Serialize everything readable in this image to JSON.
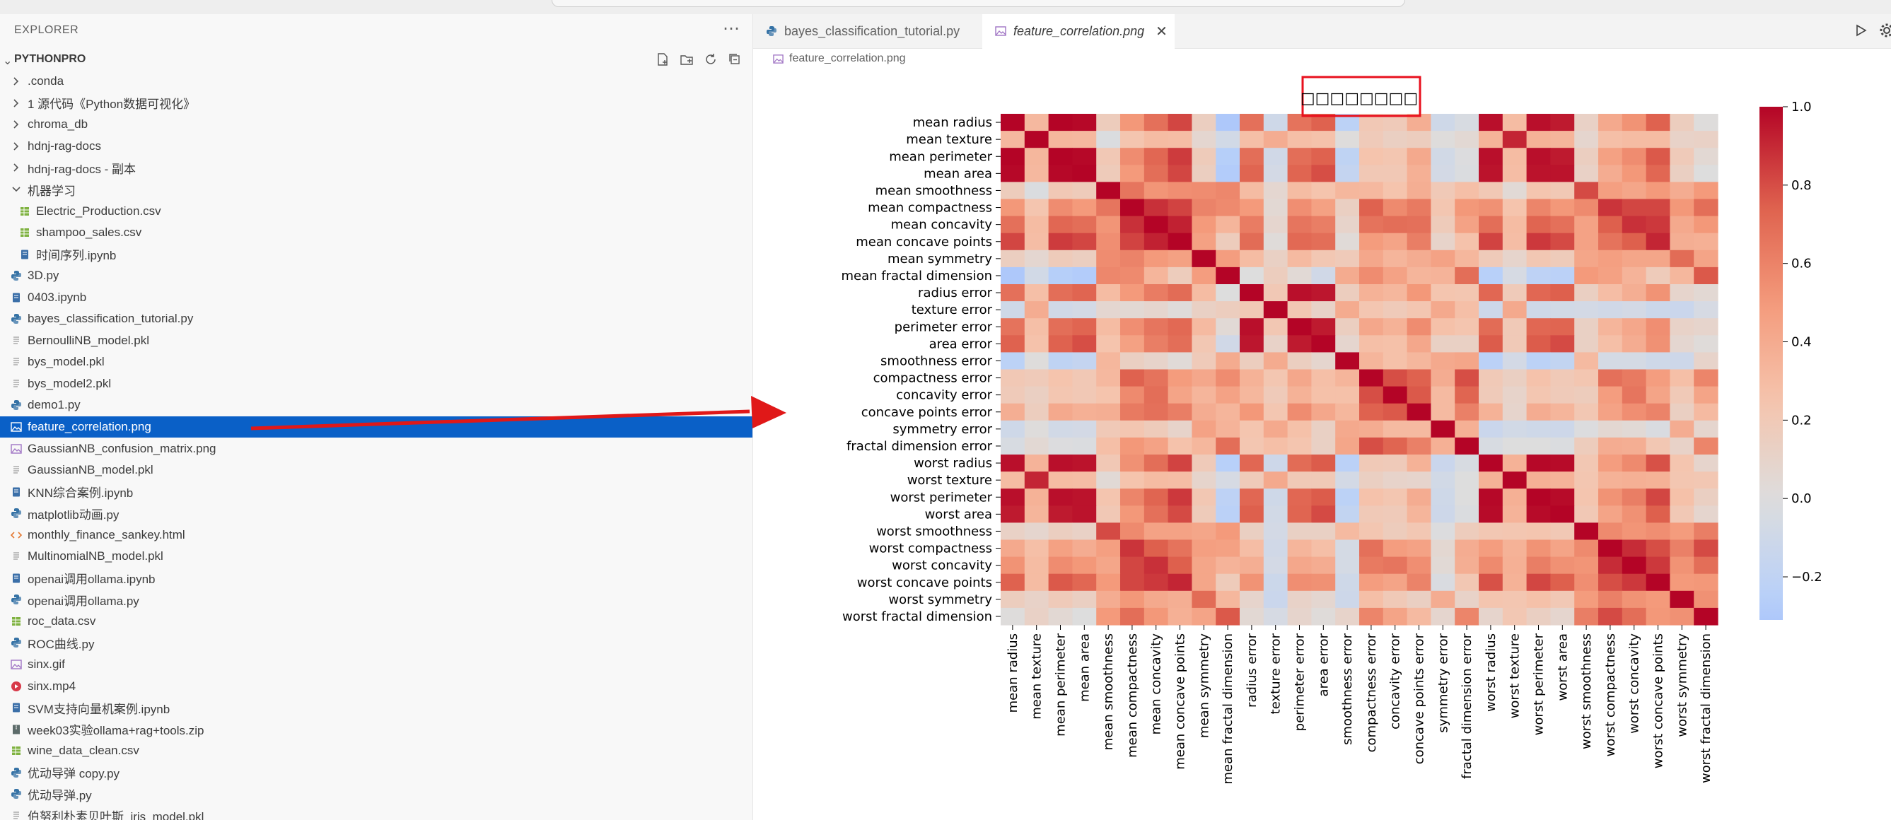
{
  "colors": {
    "accent": "#0a60c7",
    "highlight_box": "#e8101e",
    "arrow": "#e01818",
    "cmap_low": "#b3cdf5",
    "cmap_mid": "#dddddd",
    "cmap_high": "#b40426"
  },
  "explorer": {
    "header": "EXPLORER",
    "more_icon": "ellipsis-icon",
    "project": "PYTHONPRO",
    "actions": [
      "new-file-icon",
      "new-folder-icon",
      "refresh-icon",
      "collapse-all-icon"
    ],
    "items": [
      {
        "label": ".conda",
        "icon": "chevron-right-icon",
        "indent": 0,
        "type": "folder"
      },
      {
        "label": "1 源代码《Python数据可视化》",
        "icon": "chevron-right-icon",
        "indent": 0,
        "type": "folder"
      },
      {
        "label": "chroma_db",
        "icon": "chevron-right-icon",
        "indent": 0,
        "type": "folder"
      },
      {
        "label": "hdnj-rag-docs",
        "icon": "chevron-right-icon",
        "indent": 0,
        "type": "folder"
      },
      {
        "label": "hdnj-rag-docs - 副本",
        "icon": "chevron-right-icon",
        "indent": 0,
        "type": "folder"
      },
      {
        "label": "机器学习",
        "icon": "chevron-down-icon",
        "indent": 0,
        "type": "folder"
      },
      {
        "label": "Electric_Production.csv",
        "icon": "csv-icon",
        "indent": 1,
        "type": "csv"
      },
      {
        "label": "shampoo_sales.csv",
        "icon": "csv-icon",
        "indent": 1,
        "type": "csv"
      },
      {
        "label": "时间序列.ipynb",
        "icon": "notebook-icon",
        "indent": 1,
        "type": "nb"
      },
      {
        "label": "3D.py",
        "icon": "python-icon",
        "indent": 0,
        "type": "py"
      },
      {
        "label": "0403.ipynb",
        "icon": "notebook-icon",
        "indent": 0,
        "type": "nb"
      },
      {
        "label": "bayes_classification_tutorial.py",
        "icon": "python-icon",
        "indent": 0,
        "type": "py"
      },
      {
        "label": "BernoulliNB_model.pkl",
        "icon": "file-lines-icon",
        "indent": 0,
        "type": "pkl"
      },
      {
        "label": "bys_model.pkl",
        "icon": "file-lines-icon",
        "indent": 0,
        "type": "pkl"
      },
      {
        "label": "bys_model2.pkl",
        "icon": "file-lines-icon",
        "indent": 0,
        "type": "pkl"
      },
      {
        "label": "demo1.py",
        "icon": "python-icon",
        "indent": 0,
        "type": "py"
      },
      {
        "label": "feature_correlation.png",
        "icon": "image-icon",
        "indent": 0,
        "type": "img",
        "selected": true
      },
      {
        "label": "GaussianNB_confusion_matrix.png",
        "icon": "image-icon",
        "indent": 0,
        "type": "img"
      },
      {
        "label": "GaussianNB_model.pkl",
        "icon": "file-lines-icon",
        "indent": 0,
        "type": "pkl"
      },
      {
        "label": "KNN综合案例.ipynb",
        "icon": "notebook-icon",
        "indent": 0,
        "type": "nb"
      },
      {
        "label": "matplotlib动画.py",
        "icon": "python-icon",
        "indent": 0,
        "type": "py"
      },
      {
        "label": "monthly_finance_sankey.html",
        "icon": "html-icon",
        "indent": 0,
        "type": "html"
      },
      {
        "label": "MultinomialNB_model.pkl",
        "icon": "file-lines-icon",
        "indent": 0,
        "type": "pkl"
      },
      {
        "label": "openai调用ollama.ipynb",
        "icon": "notebook-icon",
        "indent": 0,
        "type": "nb"
      },
      {
        "label": "openai调用ollama.py",
        "icon": "python-icon",
        "indent": 0,
        "type": "py"
      },
      {
        "label": "roc_data.csv",
        "icon": "csv-icon",
        "indent": 0,
        "type": "csv"
      },
      {
        "label": "ROC曲线.py",
        "icon": "python-icon",
        "indent": 0,
        "type": "py"
      },
      {
        "label": "sinx.gif",
        "icon": "image-icon",
        "indent": 0,
        "type": "img"
      },
      {
        "label": "sinx.mp4",
        "icon": "video-icon",
        "indent": 0,
        "type": "mp4"
      },
      {
        "label": "SVM支持向量机案例.ipynb",
        "icon": "notebook-icon",
        "indent": 0,
        "type": "nb"
      },
      {
        "label": "week03实验ollama+rag+tools.zip",
        "icon": "zip-icon",
        "indent": 0,
        "type": "zip"
      },
      {
        "label": "wine_data_clean.csv",
        "icon": "csv-icon",
        "indent": 0,
        "type": "csv"
      },
      {
        "label": "优动导弹 copy.py",
        "icon": "python-icon",
        "indent": 0,
        "type": "py"
      },
      {
        "label": "优动导弹.py",
        "icon": "python-icon",
        "indent": 0,
        "type": "py"
      },
      {
        "label": "伯努利朴素贝叶斯_iris_model.pkl",
        "icon": "file-lines-icon",
        "indent": 0,
        "type": "pkl"
      }
    ]
  },
  "editor": {
    "tabs": [
      {
        "label": "bayes_classification_tutorial.py",
        "icon": "python-icon",
        "active": false
      },
      {
        "label": "feature_correlation.png",
        "icon": "image-icon",
        "active": true,
        "close_icon": "close-icon"
      }
    ],
    "run_icon": "play-icon",
    "settings_icon": "settings-icon",
    "breadcrumb": "feature_correlation.png"
  },
  "chart_data": {
    "type": "heatmap",
    "title": "□□□□□□□□",
    "features": [
      "mean radius",
      "mean texture",
      "mean perimeter",
      "mean area",
      "mean smoothness",
      "mean compactness",
      "mean concavity",
      "mean concave points",
      "mean symmetry",
      "mean fractal dimension",
      "radius error",
      "texture error",
      "perimeter error",
      "area error",
      "smoothness error",
      "compactness error",
      "concavity error",
      "concave points error",
      "symmetry error",
      "fractal dimension error",
      "worst radius",
      "worst texture",
      "worst perimeter",
      "worst area",
      "worst smoothness",
      "worst compactness",
      "worst concavity",
      "worst concave points",
      "worst symmetry",
      "worst fractal dimension"
    ],
    "matrix": [
      [
        1.0,
        0.32,
        1.0,
        0.99,
        0.17,
        0.51,
        0.68,
        0.82,
        0.15,
        -0.31,
        0.68,
        -0.1,
        0.67,
        0.74,
        -0.22,
        0.21,
        0.19,
        0.38,
        -0.1,
        -0.04,
        0.97,
        0.3,
        0.97,
        0.94,
        0.12,
        0.41,
        0.53,
        0.74,
        0.16,
        0.01
      ],
      [
        0.32,
        1.0,
        0.33,
        0.32,
        -0.02,
        0.24,
        0.3,
        0.29,
        0.07,
        -0.08,
        0.28,
        0.39,
        0.28,
        0.26,
        0.01,
        0.19,
        0.14,
        0.16,
        0.01,
        0.05,
        0.35,
        0.91,
        0.36,
        0.34,
        0.08,
        0.28,
        0.3,
        0.3,
        0.11,
        0.12
      ],
      [
        1.0,
        0.33,
        1.0,
        0.99,
        0.21,
        0.56,
        0.72,
        0.85,
        0.18,
        -0.26,
        0.69,
        -0.09,
        0.69,
        0.74,
        -0.2,
        0.25,
        0.23,
        0.41,
        -0.08,
        -0.01,
        0.97,
        0.3,
        0.97,
        0.94,
        0.15,
        0.46,
        0.56,
        0.77,
        0.19,
        0.05
      ],
      [
        0.99,
        0.32,
        0.99,
        1.0,
        0.18,
        0.5,
        0.69,
        0.82,
        0.15,
        -0.28,
        0.73,
        -0.07,
        0.73,
        0.8,
        -0.17,
        0.21,
        0.21,
        0.37,
        -0.07,
        -0.02,
        0.96,
        0.29,
        0.96,
        0.96,
        0.12,
        0.39,
        0.51,
        0.72,
        0.14,
        0.0
      ],
      [
        0.17,
        -0.02,
        0.21,
        0.18,
        1.0,
        0.66,
        0.52,
        0.55,
        0.56,
        0.58,
        0.3,
        0.07,
        0.3,
        0.25,
        0.33,
        0.32,
        0.25,
        0.38,
        0.2,
        0.28,
        0.21,
        0.04,
        0.24,
        0.21,
        0.81,
        0.47,
        0.43,
        0.5,
        0.39,
        0.5
      ],
      [
        0.51,
        0.24,
        0.56,
        0.5,
        0.66,
        1.0,
        0.88,
        0.83,
        0.6,
        0.57,
        0.5,
        0.05,
        0.55,
        0.46,
        0.14,
        0.74,
        0.57,
        0.64,
        0.23,
        0.51,
        0.54,
        0.25,
        0.59,
        0.51,
        0.57,
        0.87,
        0.82,
        0.82,
        0.51,
        0.69
      ],
      [
        0.68,
        0.3,
        0.72,
        0.69,
        0.52,
        0.88,
        1.0,
        0.92,
        0.5,
        0.34,
        0.63,
        0.08,
        0.66,
        0.62,
        0.1,
        0.67,
        0.69,
        0.68,
        0.18,
        0.45,
        0.69,
        0.3,
        0.73,
        0.68,
        0.45,
        0.75,
        0.88,
        0.86,
        0.41,
        0.51
      ],
      [
        0.82,
        0.29,
        0.85,
        0.82,
        0.55,
        0.83,
        0.92,
        1.0,
        0.46,
        0.17,
        0.7,
        0.02,
        0.71,
        0.69,
        0.03,
        0.49,
        0.44,
        0.62,
        0.1,
        0.26,
        0.83,
        0.29,
        0.86,
        0.81,
        0.45,
        0.67,
        0.75,
        0.91,
        0.38,
        0.37
      ],
      [
        0.15,
        0.07,
        0.18,
        0.15,
        0.56,
        0.6,
        0.5,
        0.46,
        1.0,
        0.48,
        0.3,
        0.13,
        0.31,
        0.22,
        0.19,
        0.42,
        0.34,
        0.39,
        0.45,
        0.33,
        0.19,
        0.09,
        0.22,
        0.18,
        0.43,
        0.47,
        0.43,
        0.43,
        0.7,
        0.44
      ],
      [
        -0.31,
        -0.08,
        -0.26,
        -0.28,
        0.58,
        0.57,
        0.34,
        0.17,
        0.48,
        1.0,
        0.0,
        0.16,
        0.04,
        -0.09,
        0.4,
        0.56,
        0.45,
        0.34,
        0.35,
        0.69,
        -0.25,
        -0.05,
        -0.21,
        -0.23,
        0.5,
        0.46,
        0.35,
        0.18,
        0.33,
        0.77
      ],
      [
        0.68,
        0.28,
        0.69,
        0.73,
        0.3,
        0.5,
        0.63,
        0.7,
        0.3,
        0.0,
        1.0,
        0.21,
        0.97,
        0.95,
        0.16,
        0.36,
        0.33,
        0.51,
        0.24,
        0.23,
        0.72,
        0.19,
        0.72,
        0.75,
        0.14,
        0.29,
        0.38,
        0.53,
        0.09,
        0.05
      ],
      [
        -0.1,
        0.39,
        -0.09,
        -0.07,
        0.07,
        0.05,
        0.08,
        0.02,
        0.13,
        0.16,
        0.21,
        1.0,
        0.22,
        0.11,
        0.4,
        0.23,
        0.19,
        0.23,
        0.41,
        0.28,
        -0.11,
        0.41,
        -0.1,
        -0.08,
        -0.07,
        -0.09,
        -0.07,
        -0.12,
        -0.13,
        -0.05
      ],
      [
        0.67,
        0.28,
        0.69,
        0.73,
        0.3,
        0.55,
        0.66,
        0.71,
        0.31,
        0.04,
        0.97,
        0.22,
        1.0,
        0.94,
        0.15,
        0.42,
        0.36,
        0.56,
        0.27,
        0.24,
        0.7,
        0.2,
        0.72,
        0.73,
        0.13,
        0.34,
        0.42,
        0.55,
        0.11,
        0.09
      ],
      [
        0.74,
        0.26,
        0.74,
        0.8,
        0.25,
        0.46,
        0.62,
        0.69,
        0.22,
        -0.09,
        0.95,
        0.11,
        0.94,
        1.0,
        0.08,
        0.28,
        0.27,
        0.42,
        0.13,
        0.13,
        0.76,
        0.2,
        0.76,
        0.81,
        0.13,
        0.28,
        0.39,
        0.54,
        0.07,
        0.02
      ],
      [
        -0.22,
        0.01,
        -0.2,
        -0.17,
        0.33,
        0.14,
        0.1,
        0.03,
        0.19,
        0.4,
        0.16,
        0.4,
        0.15,
        0.08,
        1.0,
        0.34,
        0.27,
        0.33,
        0.41,
        0.43,
        -0.23,
        -0.07,
        -0.22,
        -0.18,
        0.31,
        -0.06,
        -0.06,
        -0.1,
        -0.11,
        0.1
      ],
      [
        0.21,
        0.19,
        0.25,
        0.21,
        0.32,
        0.74,
        0.67,
        0.49,
        0.42,
        0.56,
        0.36,
        0.23,
        0.42,
        0.28,
        0.34,
        1.0,
        0.8,
        0.74,
        0.39,
        0.8,
        0.2,
        0.14,
        0.26,
        0.2,
        0.23,
        0.68,
        0.64,
        0.48,
        0.28,
        0.59
      ],
      [
        0.19,
        0.14,
        0.23,
        0.21,
        0.25,
        0.57,
        0.69,
        0.44,
        0.34,
        0.45,
        0.33,
        0.19,
        0.36,
        0.27,
        0.27,
        0.8,
        1.0,
        0.77,
        0.31,
        0.73,
        0.19,
        0.1,
        0.23,
        0.19,
        0.17,
        0.48,
        0.66,
        0.44,
        0.2,
        0.44
      ],
      [
        0.38,
        0.16,
        0.41,
        0.37,
        0.38,
        0.64,
        0.68,
        0.62,
        0.39,
        0.34,
        0.51,
        0.23,
        0.56,
        0.42,
        0.33,
        0.74,
        0.77,
        1.0,
        0.31,
        0.61,
        0.36,
        0.09,
        0.39,
        0.34,
        0.22,
        0.45,
        0.55,
        0.6,
        0.14,
        0.31
      ],
      [
        -0.1,
        0.01,
        -0.08,
        -0.07,
        0.2,
        0.23,
        0.18,
        0.1,
        0.45,
        0.35,
        0.24,
        0.41,
        0.27,
        0.13,
        0.41,
        0.39,
        0.31,
        0.31,
        1.0,
        0.37,
        -0.13,
        -0.08,
        -0.1,
        -0.11,
        -0.01,
        0.06,
        0.04,
        -0.03,
        0.39,
        0.08
      ],
      [
        -0.04,
        0.05,
        -0.01,
        -0.02,
        0.28,
        0.51,
        0.45,
        0.26,
        0.33,
        0.69,
        0.23,
        0.28,
        0.24,
        0.13,
        0.43,
        0.8,
        0.73,
        0.61,
        0.37,
        1.0,
        -0.04,
        -0.0,
        -0.0,
        -0.02,
        0.17,
        0.39,
        0.38,
        0.22,
        0.11,
        0.59
      ],
      [
        0.97,
        0.35,
        0.97,
        0.96,
        0.21,
        0.54,
        0.69,
        0.83,
        0.19,
        -0.25,
        0.72,
        -0.11,
        0.7,
        0.76,
        -0.23,
        0.2,
        0.19,
        0.36,
        -0.13,
        -0.04,
        1.0,
        0.36,
        0.99,
        0.98,
        0.22,
        0.48,
        0.57,
        0.79,
        0.24,
        0.09
      ],
      [
        0.3,
        0.91,
        0.3,
        0.29,
        0.04,
        0.25,
        0.3,
        0.29,
        0.09,
        -0.05,
        0.19,
        0.41,
        0.2,
        0.2,
        -0.07,
        0.14,
        0.1,
        0.09,
        -0.08,
        -0.0,
        0.36,
        1.0,
        0.37,
        0.35,
        0.23,
        0.36,
        0.37,
        0.36,
        0.23,
        0.22
      ],
      [
        0.97,
        0.36,
        0.97,
        0.96,
        0.24,
        0.59,
        0.73,
        0.86,
        0.22,
        -0.21,
        0.72,
        -0.1,
        0.72,
        0.76,
        -0.22,
        0.26,
        0.23,
        0.39,
        -0.1,
        -0.0,
        0.99,
        0.37,
        1.0,
        0.98,
        0.24,
        0.53,
        0.62,
        0.82,
        0.27,
        0.14
      ],
      [
        0.94,
        0.34,
        0.94,
        0.96,
        0.21,
        0.51,
        0.68,
        0.81,
        0.18,
        -0.23,
        0.75,
        -0.08,
        0.73,
        0.81,
        -0.18,
        0.2,
        0.19,
        0.34,
        -0.11,
        -0.02,
        0.98,
        0.35,
        0.98,
        1.0,
        0.21,
        0.44,
        0.54,
        0.75,
        0.21,
        0.08
      ],
      [
        0.12,
        0.08,
        0.15,
        0.12,
        0.81,
        0.57,
        0.45,
        0.45,
        0.43,
        0.5,
        0.14,
        -0.07,
        0.13,
        0.13,
        0.31,
        0.23,
        0.17,
        0.22,
        -0.01,
        0.17,
        0.22,
        0.23,
        0.24,
        0.21,
        1.0,
        0.57,
        0.52,
        0.55,
        0.49,
        0.62
      ],
      [
        0.41,
        0.28,
        0.46,
        0.39,
        0.47,
        0.87,
        0.75,
        0.67,
        0.47,
        0.46,
        0.29,
        -0.09,
        0.34,
        0.28,
        -0.06,
        0.68,
        0.48,
        0.45,
        0.06,
        0.39,
        0.48,
        0.36,
        0.53,
        0.44,
        0.57,
        1.0,
        0.89,
        0.8,
        0.61,
        0.81
      ],
      [
        0.53,
        0.3,
        0.56,
        0.51,
        0.43,
        0.82,
        0.88,
        0.75,
        0.43,
        0.35,
        0.38,
        -0.07,
        0.42,
        0.39,
        -0.06,
        0.64,
        0.66,
        0.55,
        0.04,
        0.38,
        0.57,
        0.37,
        0.62,
        0.54,
        0.52,
        0.89,
        1.0,
        0.86,
        0.53,
        0.69
      ],
      [
        0.74,
        0.3,
        0.77,
        0.72,
        0.5,
        0.82,
        0.86,
        0.91,
        0.43,
        0.18,
        0.53,
        -0.12,
        0.55,
        0.54,
        -0.1,
        0.48,
        0.44,
        0.6,
        -0.03,
        0.22,
        0.79,
        0.36,
        0.82,
        0.75,
        0.55,
        0.8,
        0.86,
        1.0,
        0.5,
        0.51
      ],
      [
        0.16,
        0.11,
        0.19,
        0.14,
        0.39,
        0.51,
        0.41,
        0.38,
        0.7,
        0.33,
        0.09,
        -0.13,
        0.11,
        0.07,
        -0.11,
        0.28,
        0.2,
        0.14,
        0.39,
        0.11,
        0.24,
        0.23,
        0.27,
        0.21,
        0.49,
        0.61,
        0.53,
        0.5,
        1.0,
        0.54
      ],
      [
        0.01,
        0.12,
        0.05,
        0.0,
        0.5,
        0.69,
        0.51,
        0.37,
        0.44,
        0.77,
        0.05,
        -0.05,
        0.09,
        0.02,
        0.1,
        0.59,
        0.44,
        0.31,
        0.08,
        0.59,
        0.09,
        0.22,
        0.14,
        0.08,
        0.62,
        0.81,
        0.69,
        0.51,
        0.54,
        1.0
      ]
    ],
    "vmin": -0.31,
    "vmax": 1.0,
    "colorbar_ticks": [
      "1.0",
      "0.8",
      "0.6",
      "0.4",
      "0.2",
      "0.0",
      "−0.2"
    ],
    "colorbar_values": [
      1.0,
      0.8,
      0.6,
      0.4,
      0.2,
      0.0,
      -0.2
    ],
    "colormap": "coolwarm"
  }
}
